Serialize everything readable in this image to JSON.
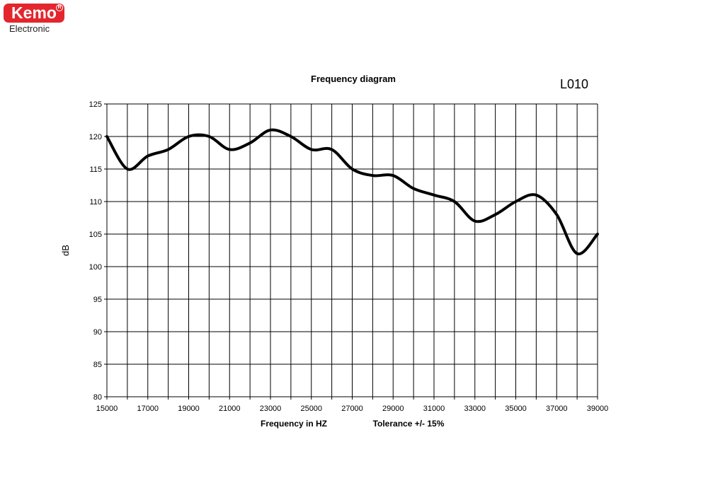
{
  "logo": {
    "brand": "Kemo",
    "sub": "Electronic",
    "color": "#e3262d"
  },
  "chart_data": {
    "type": "line",
    "title": "Frequency diagram",
    "model": "L010",
    "xlabel": "Frequency in  HZ",
    "note": "Tolerance +/- 15%",
    "ylabel": "dB",
    "xlim": [
      15000,
      39000
    ],
    "ylim": [
      80,
      125
    ],
    "x_ticks": [
      15000,
      17000,
      19000,
      21000,
      23000,
      25000,
      27000,
      29000,
      31000,
      33000,
      35000,
      37000,
      39000
    ],
    "y_ticks": [
      80,
      85,
      90,
      95,
      100,
      105,
      110,
      115,
      120,
      125
    ],
    "grid": true,
    "series": [
      {
        "x": [
          15000,
          16000,
          17000,
          18000,
          19000,
          20000,
          21000,
          22000,
          23000,
          24000,
          25000,
          26000,
          27000,
          28000,
          29000,
          30000,
          31000,
          32000,
          33000,
          34000,
          35000,
          36000,
          37000,
          38000,
          39000
        ],
        "y": [
          120,
          115,
          117,
          118,
          120,
          120,
          118,
          119,
          121,
          120,
          118,
          118,
          115,
          114,
          114,
          112,
          111,
          110,
          107,
          108,
          110,
          111,
          108,
          102,
          105
        ]
      }
    ]
  }
}
